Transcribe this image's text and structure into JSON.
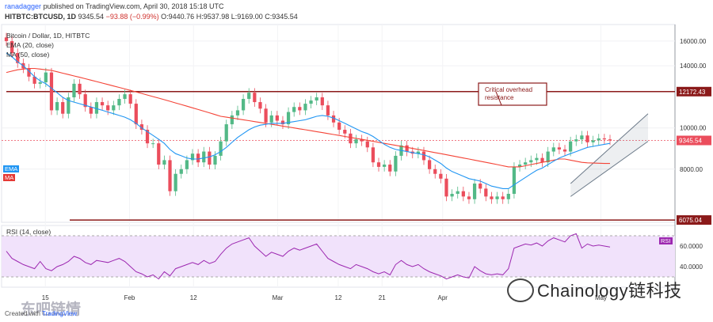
{
  "header": {
    "user": "ranadagger",
    "published": "published on TradingView.com, April 30, 2018 15:18 UTC",
    "symbol": "HITBTC:BTCUSD, 1D",
    "price": "9345.54",
    "change": "−93.88 (−0.99%)",
    "ohlc": "O:9440.76 H:9537.98 L:9169.00 C:9345.54"
  },
  "legend": {
    "title": "Bitcoin / Dollar, 1D, HITBTC",
    "ema": "EMA (20, close)",
    "ma": "MA (50, close)"
  },
  "side_tags": {
    "ema": "EMA",
    "ma": "MA",
    "rsi": "RSI"
  },
  "rsi_label": "RSI (14, close)",
  "annotation": "Critical overhead\nresistance",
  "price_tags": {
    "resistance": "12172.43",
    "current": "9345.54",
    "support": "6075.04"
  },
  "y_ticks": [
    "16000.00",
    "14000.00",
    "10000.00",
    "8000.00"
  ],
  "rsi_ticks": [
    "60.0000",
    "40.0000"
  ],
  "x_ticks": [
    "15",
    "Feb",
    "12",
    "Mar",
    "12",
    "21",
    "Apr",
    "May"
  ],
  "footer": {
    "credit_pre": "Created with",
    "credit_brand": "TradingView"
  },
  "watermark": {
    "en": "Chainology链科技",
    "cn": "东吧链情"
  },
  "colors": {
    "up": "#53b987",
    "down": "#eb4d5c",
    "ema": "#2196f3",
    "ma": "#f44336",
    "level": "#8b1a1a",
    "rsi": "#9c27b0",
    "rsi_band": "#f1e2fb",
    "channel": "#6c7a89"
  },
  "chart_data": {
    "type": "candlestick",
    "title": "Bitcoin / Dollar, 1D, HITBTC",
    "y_scale": "log",
    "ylim": [
      6000,
      17500
    ],
    "x_ticks": [
      "15",
      "Feb",
      "12",
      "Mar",
      "12",
      "21",
      "Apr",
      "May"
    ],
    "resistance_level": 12172.43,
    "support_level": 6075.04,
    "last_price": 9345.54,
    "closes": [
      16000,
      15000,
      14200,
      13800,
      13200,
      12700,
      12800,
      13500,
      11000,
      11500,
      10800,
      11800,
      12700,
      12000,
      11200,
      10800,
      11500,
      11300,
      11000,
      11300,
      11700,
      12000,
      11400,
      10200,
      9900,
      9200,
      9200,
      8200,
      8400,
      7100,
      7800,
      8000,
      8400,
      8700,
      8300,
      8800,
      8200,
      8600,
      9300,
      10200,
      10700,
      11000,
      11700,
      12100,
      11500,
      11100,
      10300,
      10700,
      10400,
      10200,
      10900,
      11200,
      11000,
      11400,
      11600,
      11800,
      11300,
      10700,
      10300,
      9900,
      9700,
      9200,
      9400,
      9300,
      9000,
      8300,
      8100,
      8200,
      7900,
      8600,
      9100,
      8800,
      8700,
      8800,
      8400,
      8000,
      7800,
      7600,
      6900,
      7000,
      7100,
      6900,
      6800,
      7400,
      7200,
      6900,
      6800,
      6900,
      6800,
      7000,
      8100,
      8200,
      8300,
      8400,
      8500,
      8300,
      8800,
      9000,
      8900,
      8800,
      9300,
      9400,
      9600,
      9250,
      9350,
      9450,
      9400,
      9345
    ],
    "ema_20": [
      15000,
      14700,
      14300,
      14000,
      13600,
      13200,
      12900,
      12700,
      12400,
      12100,
      11800,
      11600,
      11500,
      11400,
      11300,
      11200,
      11100,
      11000,
      10900,
      10800,
      10700,
      10600,
      10450,
      10250,
      10000,
      9800,
      9600,
      9400,
      9200,
      8900,
      8700,
      8600,
      8500,
      8450,
      8450,
      8500,
      8550,
      8650,
      8800,
      9000,
      9250,
      9500,
      9700,
      9900,
      10050,
      10150,
      10200,
      10250,
      10250,
      10250,
      10300,
      10350,
      10400,
      10450,
      10550,
      10650,
      10700,
      10650,
      10550,
      10400,
      10250,
      10100,
      9950,
      9800,
      9700,
      9550,
      9350,
      9150,
      9000,
      8900,
      8850,
      8800,
      8750,
      8700,
      8650,
      8550,
      8400,
      8250,
      8050,
      7900,
      7800,
      7700,
      7600,
      7550,
      7500,
      7400,
      7300,
      7250,
      7200,
      7200,
      7350,
      7500,
      7650,
      7800,
      7950,
      8050,
      8200,
      8350,
      8500,
      8600,
      8700,
      8800,
      8900,
      9000,
      9050,
      9100,
      9150,
      9200
    ],
    "ma_50": [
      13500,
      13600,
      13700,
      13750,
      13800,
      13800,
      13750,
      13700,
      13650,
      13550,
      13450,
      13350,
      13250,
      13150,
      13050,
      12950,
      12850,
      12750,
      12650,
      12550,
      12450,
      12350,
      12250,
      12150,
      12050,
      11950,
      11850,
      11750,
      11650,
      11550,
      11450,
      11350,
      11250,
      11150,
      11050,
      10950,
      10850,
      10750,
      10650,
      10600,
      10550,
      10500,
      10450,
      10400,
      10350,
      10300,
      10250,
      10200,
      10150,
      10100,
      10050,
      10000,
      9950,
      9900,
      9850,
      9800,
      9750,
      9700,
      9650,
      9600,
      9550,
      9500,
      9450,
      9400,
      9350,
      9300,
      9250,
      9200,
      9150,
      9100,
      9050,
      9000,
      8950,
      8900,
      8850,
      8800,
      8750,
      8700,
      8650,
      8600,
      8550,
      8500,
      8450,
      8400,
      8350,
      8300,
      8250,
      8200,
      8150,
      8100,
      8100,
      8100,
      8150,
      8200,
      8250,
      8300,
      8350,
      8400,
      8450,
      8450,
      8400,
      8350,
      8300,
      8280,
      8270,
      8260,
      8250,
      8250
    ],
    "channel": {
      "lower": [
        6900,
        9300
      ],
      "upper": [
        7400,
        10800
      ],
      "x_range": [
        0.845,
        0.96
      ]
    },
    "rsi": {
      "label": "RSI (14, close)",
      "ylim": [
        20,
        80
      ],
      "band": [
        30,
        70
      ],
      "values": [
        55,
        48,
        45,
        42,
        40,
        38,
        45,
        38,
        36,
        40,
        42,
        45,
        50,
        48,
        44,
        42,
        46,
        45,
        44,
        46,
        48,
        45,
        40,
        35,
        33,
        30,
        32,
        28,
        35,
        31,
        38,
        40,
        42,
        44,
        42,
        46,
        43,
        45,
        52,
        58,
        62,
        64,
        66,
        68,
        60,
        55,
        50,
        54,
        52,
        50,
        55,
        58,
        56,
        58,
        60,
        62,
        55,
        48,
        45,
        42,
        40,
        38,
        42,
        40,
        38,
        35,
        33,
        35,
        32,
        42,
        46,
        42,
        40,
        42,
        38,
        35,
        33,
        31,
        28,
        30,
        32,
        30,
        29,
        40,
        36,
        33,
        32,
        33,
        32,
        38,
        58,
        60,
        62,
        61,
        63,
        60,
        65,
        68,
        66,
        64,
        70,
        72,
        58,
        62,
        60,
        61,
        60,
        59
      ]
    }
  }
}
